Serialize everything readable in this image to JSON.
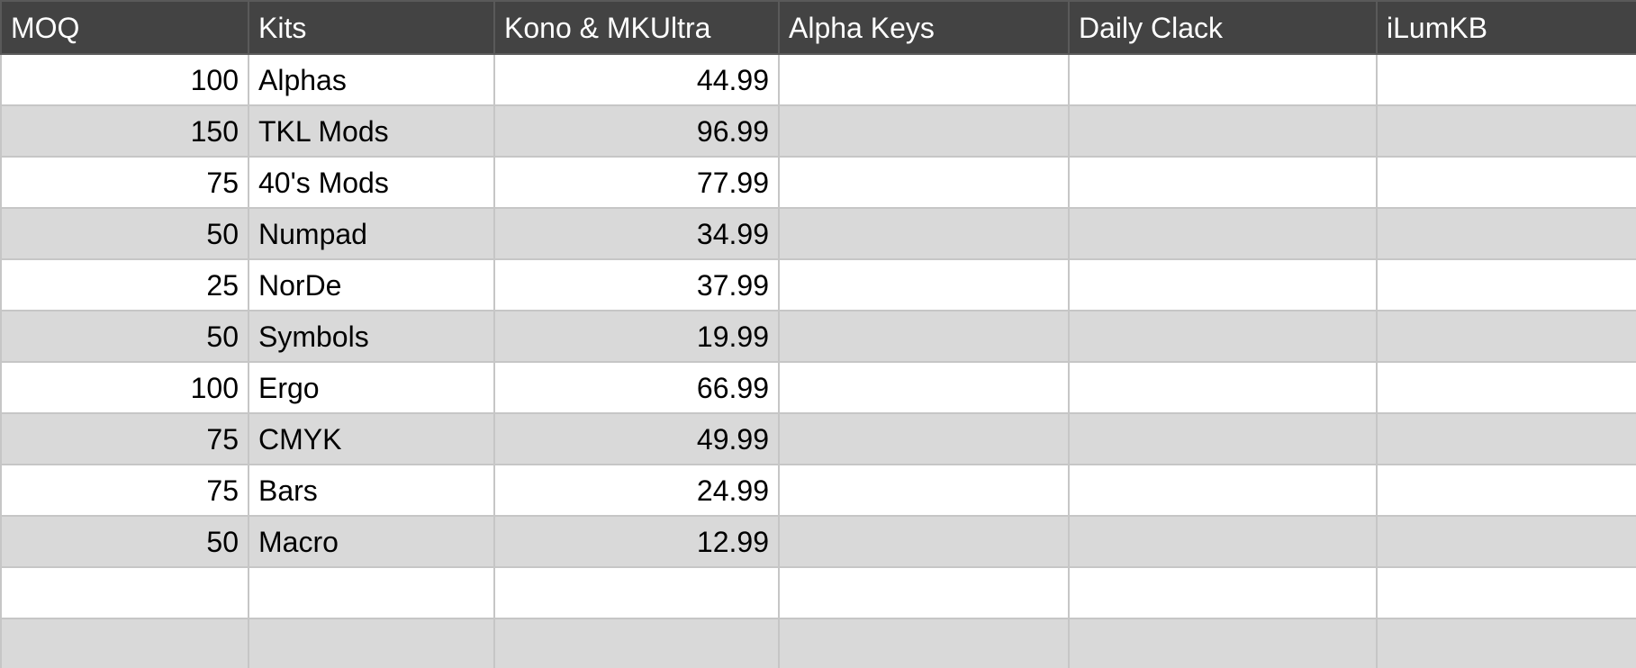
{
  "columns": [
    "MOQ",
    "Kits",
    "Kono & MKUltra",
    "Alpha Keys",
    "Daily Clack",
    "iLumKB"
  ],
  "rows": [
    {
      "moq": "100",
      "kit": "Alphas",
      "kono": "44.99",
      "alpha": "",
      "daily": "",
      "ilum": ""
    },
    {
      "moq": "150",
      "kit": "TKL Mods",
      "kono": "96.99",
      "alpha": "",
      "daily": "",
      "ilum": ""
    },
    {
      "moq": "75",
      "kit": "40's Mods",
      "kono": "77.99",
      "alpha": "",
      "daily": "",
      "ilum": ""
    },
    {
      "moq": "50",
      "kit": "Numpad",
      "kono": "34.99",
      "alpha": "",
      "daily": "",
      "ilum": ""
    },
    {
      "moq": "25",
      "kit": "NorDe",
      "kono": "37.99",
      "alpha": "",
      "daily": "",
      "ilum": ""
    },
    {
      "moq": "50",
      "kit": "Symbols",
      "kono": "19.99",
      "alpha": "",
      "daily": "",
      "ilum": ""
    },
    {
      "moq": "100",
      "kit": "Ergo",
      "kono": "66.99",
      "alpha": "",
      "daily": "",
      "ilum": ""
    },
    {
      "moq": "75",
      "kit": "CMYK",
      "kono": "49.99",
      "alpha": "",
      "daily": "",
      "ilum": ""
    },
    {
      "moq": "75",
      "kit": "Bars",
      "kono": "24.99",
      "alpha": "",
      "daily": "",
      "ilum": ""
    },
    {
      "moq": "50",
      "kit": "Macro",
      "kono": "12.99",
      "alpha": "",
      "daily": "",
      "ilum": ""
    },
    {
      "moq": "",
      "kit": "",
      "kono": "",
      "alpha": "",
      "daily": "",
      "ilum": ""
    },
    {
      "moq": "",
      "kit": "",
      "kono": "",
      "alpha": "",
      "daily": "",
      "ilum": ""
    }
  ],
  "colors": {
    "header_bg": "#434343",
    "header_text": "#ffffff",
    "row_alt_bg": "#d9d9d9",
    "row_bg": "#ffffff",
    "grid": "#c6c6c6"
  }
}
